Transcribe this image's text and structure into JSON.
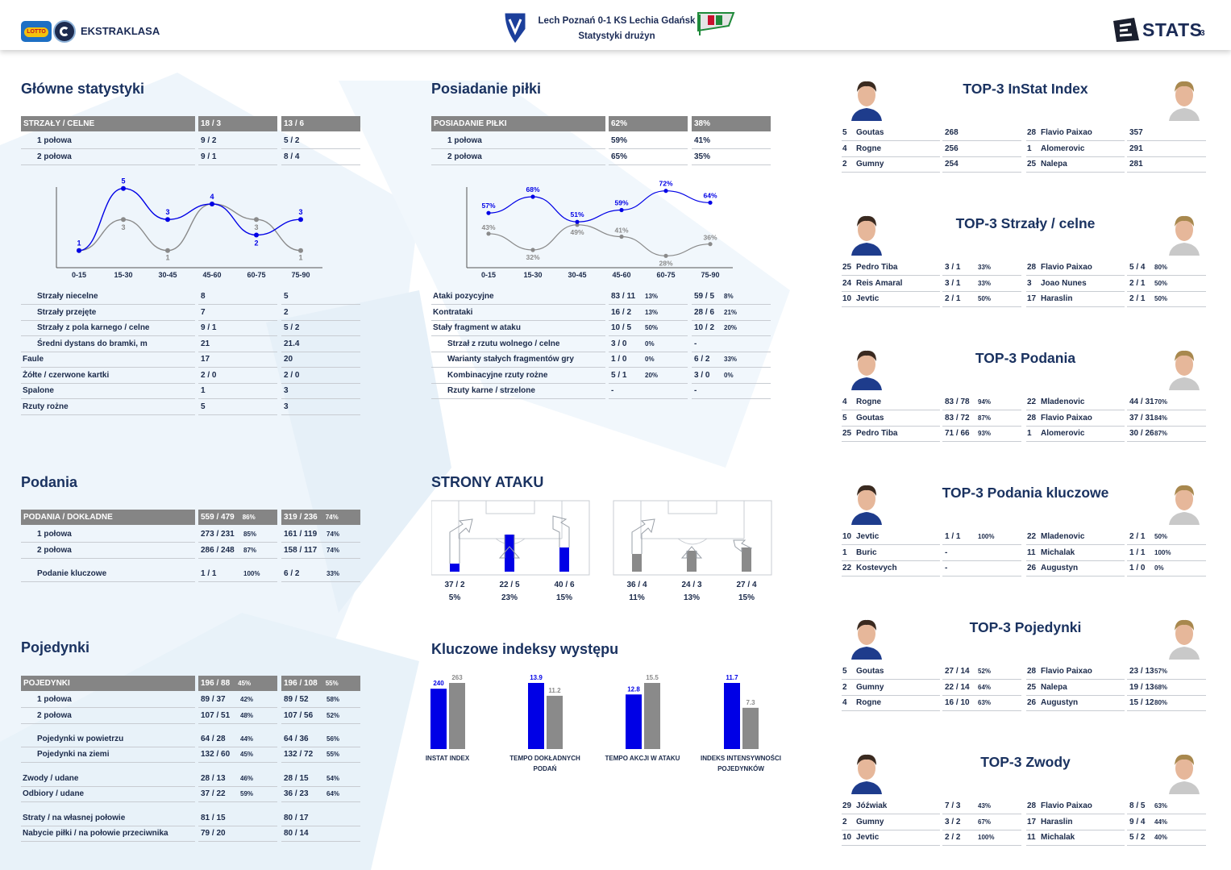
{
  "header": {
    "brand": "EKSTRAKLASA",
    "lotto_badge": "LOTTO",
    "match_title": "Lech Poznań 0-1 KS Lechia Gdańsk",
    "subtitle": "Statystyki drużyn",
    "stats_logo": "STATS",
    "page_number": "3"
  },
  "colors": {
    "home": "#0000e6",
    "away": "#8a8a8a",
    "header_bg": "#858585",
    "title": "#1a3260"
  },
  "main_stats": {
    "title": "Główne statystyki",
    "header": [
      "STRZAŁY / CELNE",
      "18 / 3",
      "13 / 6"
    ],
    "half_rows": [
      [
        "1 połowa",
        "9 / 2",
        "5 / 2"
      ],
      [
        "2 połowa",
        "9 / 1",
        "8 / 4"
      ]
    ],
    "rows": [
      [
        "Strzały niecelne",
        "8",
        "5"
      ],
      [
        "Strzały przejęte",
        "7",
        "2"
      ],
      [
        "Strzały z pola karnego / celne",
        "9 / 1",
        "5 / 2"
      ],
      [
        "Średni dystans do bramki, m",
        "21",
        "21.4"
      ],
      [
        "Faule",
        "17",
        "20"
      ],
      [
        "Żółte / czerwone kartki",
        "2 / 0",
        "2 / 0"
      ],
      [
        "Spalone",
        "1",
        "3"
      ],
      [
        "Rzuty rożne",
        "5",
        "3"
      ]
    ]
  },
  "shots_chart": {
    "categories": [
      "0-15",
      "15-30",
      "30-45",
      "45-60",
      "60-75",
      "75-90"
    ],
    "home_labels": [
      "1",
      "5",
      "3",
      "4",
      "2",
      "3"
    ],
    "away_labels": [
      "",
      "3",
      "1",
      "",
      "3",
      "1"
    ]
  },
  "possession": {
    "title": "Posiadanie piłki",
    "header": [
      "POSIADANIE PIŁKI",
      "62%",
      "38%"
    ],
    "half_rows": [
      [
        "1 połowa",
        "59%",
        "41%"
      ],
      [
        "2 połowa",
        "65%",
        "35%"
      ]
    ],
    "rows": [
      [
        "Ataki pozycyjne",
        "83 / 11",
        "13%",
        "59 / 5",
        "8%"
      ],
      [
        "Kontrataki",
        "16 / 2",
        "13%",
        "28 / 6",
        "21%"
      ],
      [
        "Stały fragment w ataku",
        "10 / 5",
        "50%",
        "10 / 2",
        "20%"
      ],
      [
        "Strzał z rzutu wolnego / celne",
        "3 / 0",
        "0%",
        "-",
        ""
      ],
      [
        "Warianty stałych fragmentów gry",
        "1 / 0",
        "0%",
        "6 / 2",
        "33%"
      ],
      [
        "Kombinacyjne rzuty rożne",
        "5 / 1",
        "20%",
        "3 / 0",
        "0%"
      ],
      [
        "Rzuty karne / strzelone",
        "-",
        "",
        "-",
        ""
      ]
    ]
  },
  "possession_chart": {
    "categories": [
      "0-15",
      "15-30",
      "30-45",
      "45-60",
      "60-75",
      "75-90"
    ],
    "home_labels": [
      "57%",
      "68%",
      "51%",
      "59%",
      "72%",
      "64%"
    ],
    "away_labels": [
      "43%",
      "32%",
      "49%",
      "41%",
      "28%",
      "36%"
    ]
  },
  "passes": {
    "title": "Podania",
    "header": [
      "PODANIA / DOKŁADNE",
      "559 / 479",
      "86%",
      "319 / 236",
      "74%"
    ],
    "rows": [
      [
        "1 połowa",
        "273 / 231",
        "85%",
        "161 / 119",
        "74%"
      ],
      [
        "2 połowa",
        "286 / 248",
        "87%",
        "158 / 117",
        "74%"
      ],
      [
        "Podanie kluczowe",
        "1 / 1",
        "100%",
        "6 / 2",
        "33%"
      ]
    ]
  },
  "attack_sides": {
    "title": "STRONY ATAKU",
    "home": [
      {
        "value": "37 / 2",
        "pct": "5%"
      },
      {
        "value": "22 / 5",
        "pct": "23%"
      },
      {
        "value": "40 / 6",
        "pct": "15%"
      }
    ],
    "away": [
      {
        "value": "36 / 4",
        "pct": "11%"
      },
      {
        "value": "24 / 3",
        "pct": "13%"
      },
      {
        "value": "27 / 4",
        "pct": "15%"
      }
    ]
  },
  "duels": {
    "title": "Pojedynki",
    "header": [
      "POJEDYNKI",
      "196 / 88",
      "45%",
      "196 / 108",
      "55%"
    ],
    "rows": [
      [
        "1 połowa",
        "89 / 37",
        "42%",
        "89 / 52",
        "58%"
      ],
      [
        "2 połowa",
        "107 / 51",
        "48%",
        "107 / 56",
        "52%"
      ],
      [
        "Pojedynki w powietrzu",
        "64 / 28",
        "44%",
        "64 / 36",
        "56%"
      ],
      [
        "Pojedynki na ziemi",
        "132 / 60",
        "45%",
        "132 / 72",
        "55%"
      ],
      [
        "Zwody / udane",
        "28 / 13",
        "46%",
        "28 / 15",
        "54%"
      ],
      [
        "Odbiory / udane",
        "37 / 22",
        "59%",
        "36 / 23",
        "64%"
      ],
      [
        "Straty / na własnej połowie",
        "81 / 15",
        "",
        "80 / 17",
        ""
      ],
      [
        "Nabycie piłki / na połowie przeciwnika",
        "79 / 20",
        "",
        "80 / 14",
        ""
      ]
    ]
  },
  "key_indexes": {
    "title": "Kluczowe indeksy występu",
    "items": [
      {
        "label_lines": [
          "INSTAT INDEX"
        ],
        "home": 240,
        "away": 263,
        "home_label": "240",
        "away_label": "263"
      },
      {
        "label_lines": [
          "TEMPO DOKŁADNYCH",
          "PODAŃ"
        ],
        "home": 13.9,
        "away": 11.2,
        "home_label": "13.9",
        "away_label": "11.2"
      },
      {
        "label_lines": [
          "TEMPO AKCJI W ATAKU"
        ],
        "home": 12.8,
        "away": 15.5,
        "home_label": "12.8",
        "away_label": "15.5"
      },
      {
        "label_lines": [
          "INDEKS INTENSYWNOŚCI",
          "POJEDYNKÓW"
        ],
        "home": 11.7,
        "away": 7.3,
        "home_label": "11.7",
        "away_label": "7.3"
      }
    ]
  },
  "top3": [
    {
      "title": "TOP-3 InStat Index",
      "home": [
        [
          "5",
          "Goutas",
          "268",
          ""
        ],
        [
          "4",
          "Rogne",
          "256",
          ""
        ],
        [
          "2",
          "Gumny",
          "254",
          ""
        ]
      ],
      "away": [
        [
          "28",
          "Flavio Paixao",
          "357",
          ""
        ],
        [
          "1",
          "Alomerovic",
          "291",
          ""
        ],
        [
          "25",
          "Nalepa",
          "281",
          ""
        ]
      ]
    },
    {
      "title": "TOP-3 Strzały / celne",
      "home": [
        [
          "25",
          "Pedro Tiba",
          "3 / 1",
          "33%"
        ],
        [
          "24",
          "Reis Amaral",
          "3 / 1",
          "33%"
        ],
        [
          "10",
          "Jevtic",
          "2 / 1",
          "50%"
        ]
      ],
      "away": [
        [
          "28",
          "Flavio Paixao",
          "5 / 4",
          "80%"
        ],
        [
          "3",
          "Joao Nunes",
          "2 / 1",
          "50%"
        ],
        [
          "17",
          "Haraslin",
          "2 / 1",
          "50%"
        ]
      ]
    },
    {
      "title": "TOP-3 Podania",
      "home": [
        [
          "4",
          "Rogne",
          "83 / 78",
          "94%"
        ],
        [
          "5",
          "Goutas",
          "83 / 72",
          "87%"
        ],
        [
          "25",
          "Pedro Tiba",
          "71 / 66",
          "93%"
        ]
      ],
      "away": [
        [
          "22",
          "Mladenovic",
          "44 / 31",
          "70%"
        ],
        [
          "28",
          "Flavio Paixao",
          "37 / 31",
          "84%"
        ],
        [
          "1",
          "Alomerovic",
          "30 / 26",
          "87%"
        ]
      ]
    },
    {
      "title": "TOP-3 Podania kluczowe",
      "home": [
        [
          "10",
          "Jevtic",
          "1 / 1",
          "100%"
        ],
        [
          "1",
          "Buric",
          "-",
          ""
        ],
        [
          "22",
          "Kostevych",
          "-",
          ""
        ]
      ],
      "away": [
        [
          "22",
          "Mladenovic",
          "2 / 1",
          "50%"
        ],
        [
          "11",
          "Michalak",
          "1 / 1",
          "100%"
        ],
        [
          "26",
          "Augustyn",
          "1 / 0",
          "0%"
        ]
      ]
    },
    {
      "title": "TOP-3 Pojedynki",
      "home": [
        [
          "5",
          "Goutas",
          "27 / 14",
          "52%"
        ],
        [
          "2",
          "Gumny",
          "22 / 14",
          "64%"
        ],
        [
          "4",
          "Rogne",
          "16 / 10",
          "63%"
        ]
      ],
      "away": [
        [
          "28",
          "Flavio Paixao",
          "23 / 13",
          "57%"
        ],
        [
          "25",
          "Nalepa",
          "19 / 13",
          "68%"
        ],
        [
          "26",
          "Augustyn",
          "15 / 12",
          "80%"
        ]
      ]
    },
    {
      "title": "TOP-3 Zwody",
      "home": [
        [
          "29",
          "Jóźwiak",
          "7 / 3",
          "43%"
        ],
        [
          "2",
          "Gumny",
          "3 / 2",
          "67%"
        ],
        [
          "10",
          "Jevtic",
          "2 / 2",
          "100%"
        ]
      ],
      "away": [
        [
          "28",
          "Flavio Paixao",
          "8 / 5",
          "63%"
        ],
        [
          "17",
          "Haraslin",
          "9 / 4",
          "44%"
        ],
        [
          "11",
          "Michalak",
          "5 / 2",
          "40%"
        ]
      ]
    }
  ]
}
